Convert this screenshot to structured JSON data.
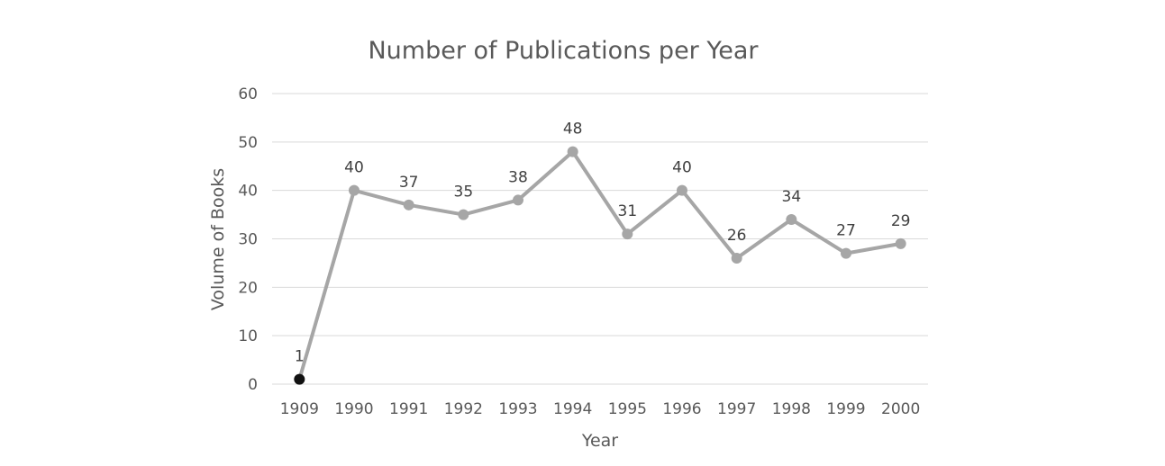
{
  "chart_data": {
    "type": "line",
    "title": "Number of Publications per Year",
    "xlabel": "Year",
    "ylabel": "Volume of Books",
    "categories": [
      "1909",
      "1990",
      "1991",
      "1992",
      "1993",
      "1994",
      "1995",
      "1996",
      "1997",
      "1998",
      "1999",
      "2000"
    ],
    "series": [
      {
        "values": [
          1,
          40,
          37,
          35,
          38,
          48,
          31,
          40,
          26,
          34,
          27,
          29
        ]
      }
    ],
    "ylim": [
      0,
      60
    ],
    "yticks": [
      0,
      10,
      20,
      30,
      40,
      50,
      60
    ],
    "grid": true,
    "legend": "none",
    "colors": {
      "line": "#a6a6a6",
      "marker": "#a6a6a6",
      "highlight_marker": "#111111",
      "grid": "#d9d9d9",
      "text": "#595959"
    },
    "highlighted_point": "1909"
  }
}
